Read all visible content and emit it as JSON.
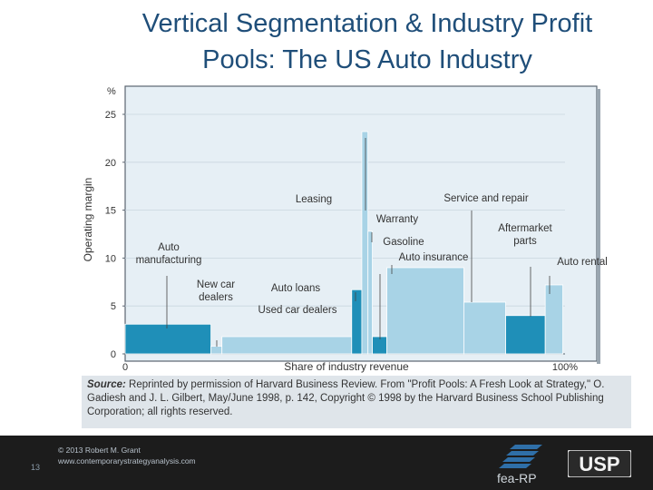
{
  "slide": {
    "title_line1": "Vertical Segmentation & Industry Profit",
    "title_line2": "Pools: The US Auto Industry",
    "page_number": "13",
    "copyright": "© 2013 Robert M. Grant",
    "website": "www.contemporarystrategyanalysis.com",
    "logo_left_text": "fea-RP",
    "logo_right_text": "USP"
  },
  "source_note": {
    "label": "Source:",
    "text": " Reprinted by permission of Harvard Business Review. From \"Profit Pools: A Fresh Look at Strategy,\" O. Gadiesh and J. L. Gilbert, May/June 1998, p. 142, Copyright © 1998 by the Harvard Business School Publishing Corporation; all rights reserved."
  },
  "colors": {
    "title": "#1f4e79",
    "dark_bar": "#1f8fb8",
    "light_bar": "#a8d3e6",
    "plot_background": "#e6eff5",
    "frame": "#5a6470"
  },
  "chart_data": {
    "type": "bar",
    "variant": "variable-width profit pool",
    "xlabel": "Share of industry revenue",
    "ylabel": "Operating margin",
    "y_unit": "%",
    "xlim": [
      0,
      100
    ],
    "ylim": [
      0,
      25
    ],
    "y_ticks": [
      0,
      5,
      10,
      15,
      20,
      25
    ],
    "x_tick_labels": [
      "0",
      "100%"
    ],
    "segments": [
      {
        "name": "Auto manufacturing",
        "label": "Auto\nmanufacturing",
        "x_start": 0,
        "x_end": 19.5,
        "margin": 3.1,
        "tone": "dark"
      },
      {
        "name": "New car dealers",
        "label": "New car\ndealers",
        "x_start": 19.5,
        "x_end": 22,
        "margin": 0.8,
        "tone": "light"
      },
      {
        "name": "Used car dealers",
        "label": "Used car dealers",
        "x_start": 22,
        "x_end": 51.5,
        "margin": 1.8,
        "tone": "light"
      },
      {
        "name": "Auto loans",
        "label": "Auto loans",
        "x_start": 51.5,
        "x_end": 53.8,
        "margin": 6.7,
        "tone": "dark"
      },
      {
        "name": "Leasing",
        "label": "Leasing",
        "x_start": 53.8,
        "x_end": 55.2,
        "margin": 23.2,
        "tone": "light"
      },
      {
        "name": "Warranty",
        "label": "Warranty",
        "x_start": 55.2,
        "x_end": 56.2,
        "margin": 12.8,
        "tone": "light"
      },
      {
        "name": "Gasoline",
        "label": "Gasoline",
        "x_start": 56.2,
        "x_end": 59.5,
        "margin": 1.8,
        "tone": "dark"
      },
      {
        "name": "Auto insurance",
        "label": "Auto insurance",
        "x_start": 59.5,
        "x_end": 77,
        "margin": 9.0,
        "tone": "light"
      },
      {
        "name": "Service and repair",
        "label": "Service and repair",
        "x_start": 77,
        "x_end": 86.5,
        "margin": 5.4,
        "tone": "light"
      },
      {
        "name": "Aftermarket parts",
        "label": "Aftermarket\nparts",
        "x_start": 86.5,
        "x_end": 95.5,
        "margin": 4.0,
        "tone": "dark"
      },
      {
        "name": "Auto rental",
        "label": "Auto rental",
        "x_start": 95.5,
        "x_end": 99.5,
        "margin": 7.2,
        "tone": "light"
      }
    ]
  }
}
